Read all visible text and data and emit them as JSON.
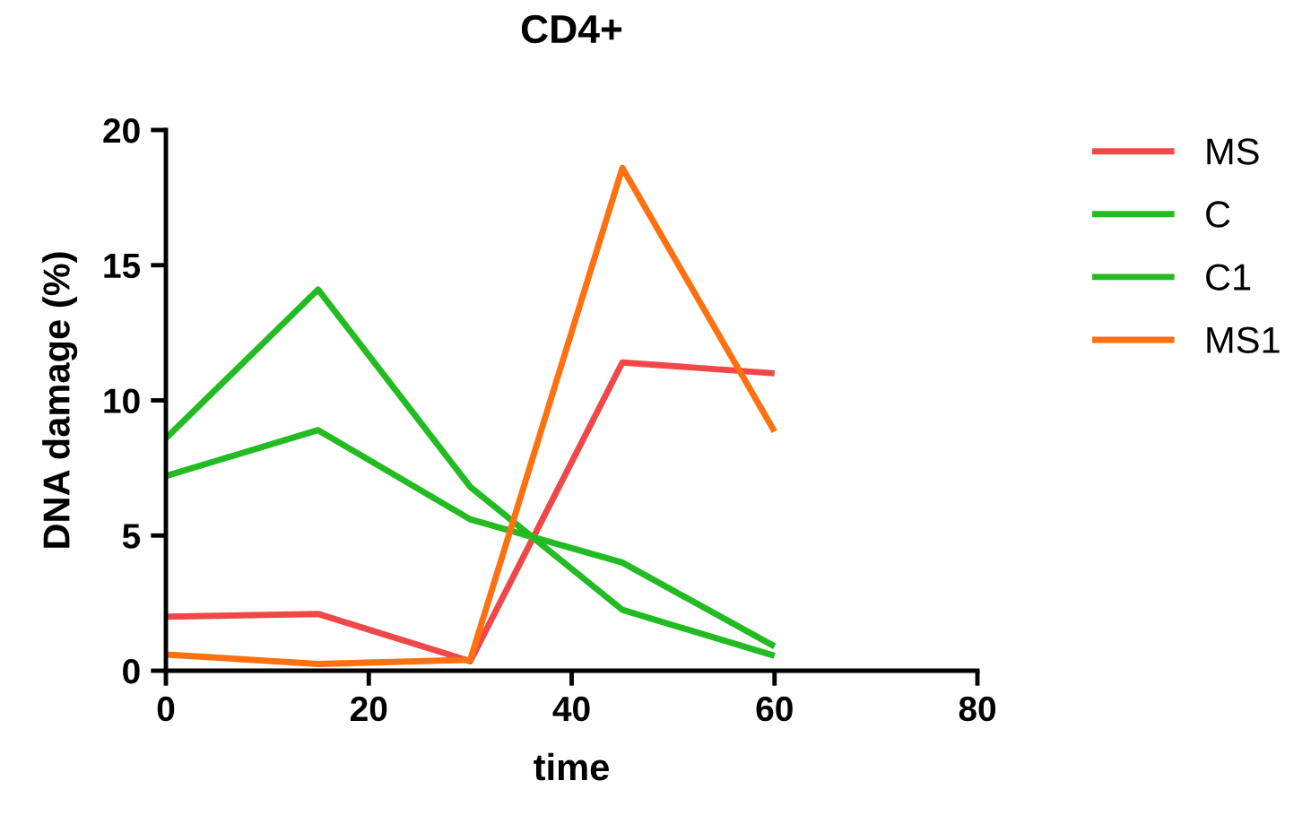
{
  "chart_data": {
    "type": "line",
    "title": "CD4+",
    "xlabel": "time",
    "ylabel": "DNA damage (%)",
    "x": [
      0,
      15,
      30,
      45,
      60
    ],
    "series": [
      {
        "name": "MS",
        "color": "#f04848",
        "values": [
          2.0,
          2.1,
          0.35,
          11.4,
          11.0
        ]
      },
      {
        "name": "C",
        "color": "#22bb22",
        "values": [
          8.6,
          14.1,
          6.8,
          2.25,
          0.55
        ]
      },
      {
        "name": "C1",
        "color": "#22bb22",
        "values": [
          7.2,
          8.9,
          5.6,
          4.0,
          0.9
        ]
      },
      {
        "name": "MS1",
        "color": "#ff7010",
        "values": [
          0.6,
          0.25,
          0.4,
          18.6,
          8.85
        ]
      }
    ],
    "xlim": [
      0,
      80
    ],
    "xticks": [
      0,
      20,
      40,
      60,
      80
    ],
    "ylim": [
      0,
      20
    ],
    "yticks": [
      0,
      5,
      10,
      15,
      20
    ],
    "grid": false,
    "legend": "right",
    "marker": "none",
    "line_style": "solid"
  }
}
